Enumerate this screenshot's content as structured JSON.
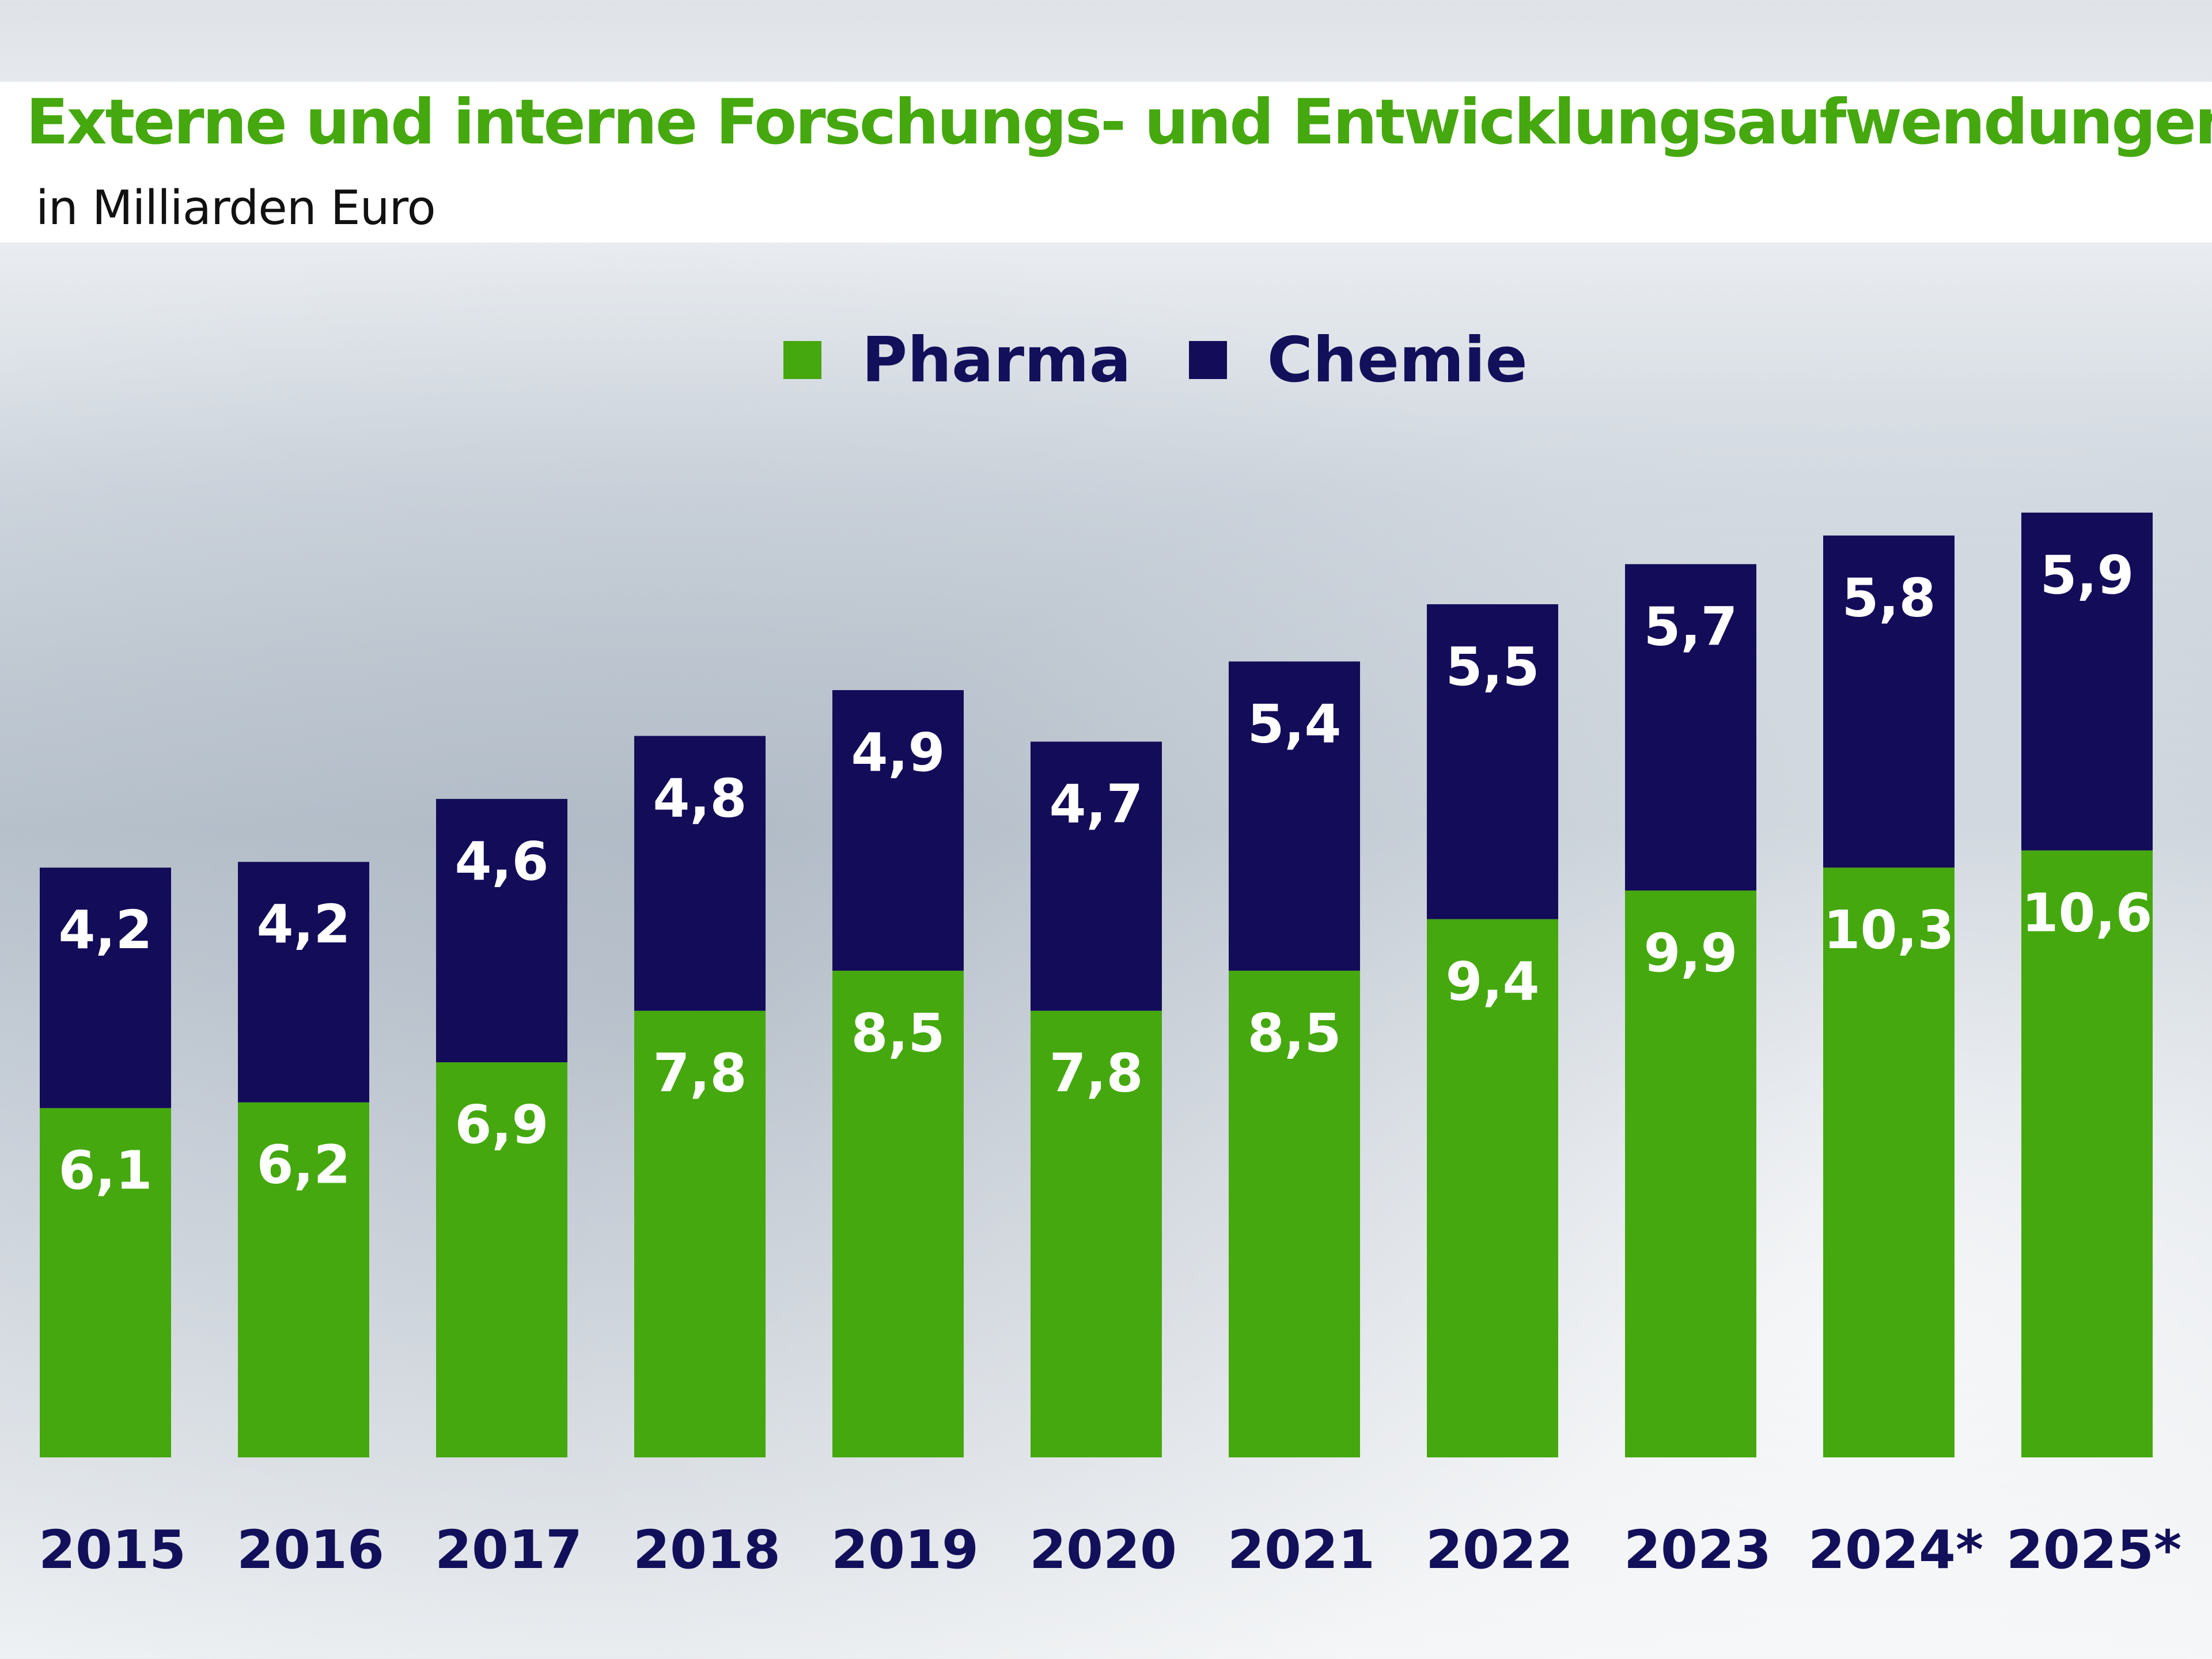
{
  "chart_data": {
    "type": "bar",
    "stacked": true,
    "title": "Externe und interne Forschungs- und Entwicklungsaufwendungen",
    "subtitle": "in Milliarden Euro",
    "categories": [
      "2015",
      "2016",
      "2017",
      "2018",
      "2019",
      "2020",
      "2021",
      "2022",
      "2023",
      "2024*",
      "2025*"
    ],
    "series": [
      {
        "name": "Pharma",
        "color": "#45a80e",
        "values": [
          6.1,
          6.2,
          6.9,
          7.8,
          8.5,
          7.8,
          8.5,
          9.4,
          9.9,
          10.3,
          10.6
        ],
        "labels": [
          "6,1",
          "6,2",
          "6,9",
          "7,8",
          "8,5",
          "7,8",
          "8,5",
          "9,4",
          "9,9",
          "10,3",
          "10,6"
        ]
      },
      {
        "name": "Chemie",
        "color": "#130c58",
        "values": [
          4.2,
          4.2,
          4.6,
          4.8,
          4.9,
          4.7,
          5.4,
          5.5,
          5.7,
          5.8,
          5.9
        ],
        "labels": [
          "4,2",
          "4,2",
          "4,6",
          "4,8",
          "4,9",
          "4,7",
          "5,4",
          "5,5",
          "5,7",
          "5,8",
          "5,9"
        ]
      }
    ],
    "legend_position": "top-center",
    "grid": false,
    "ylim": [
      0,
      17
    ]
  }
}
